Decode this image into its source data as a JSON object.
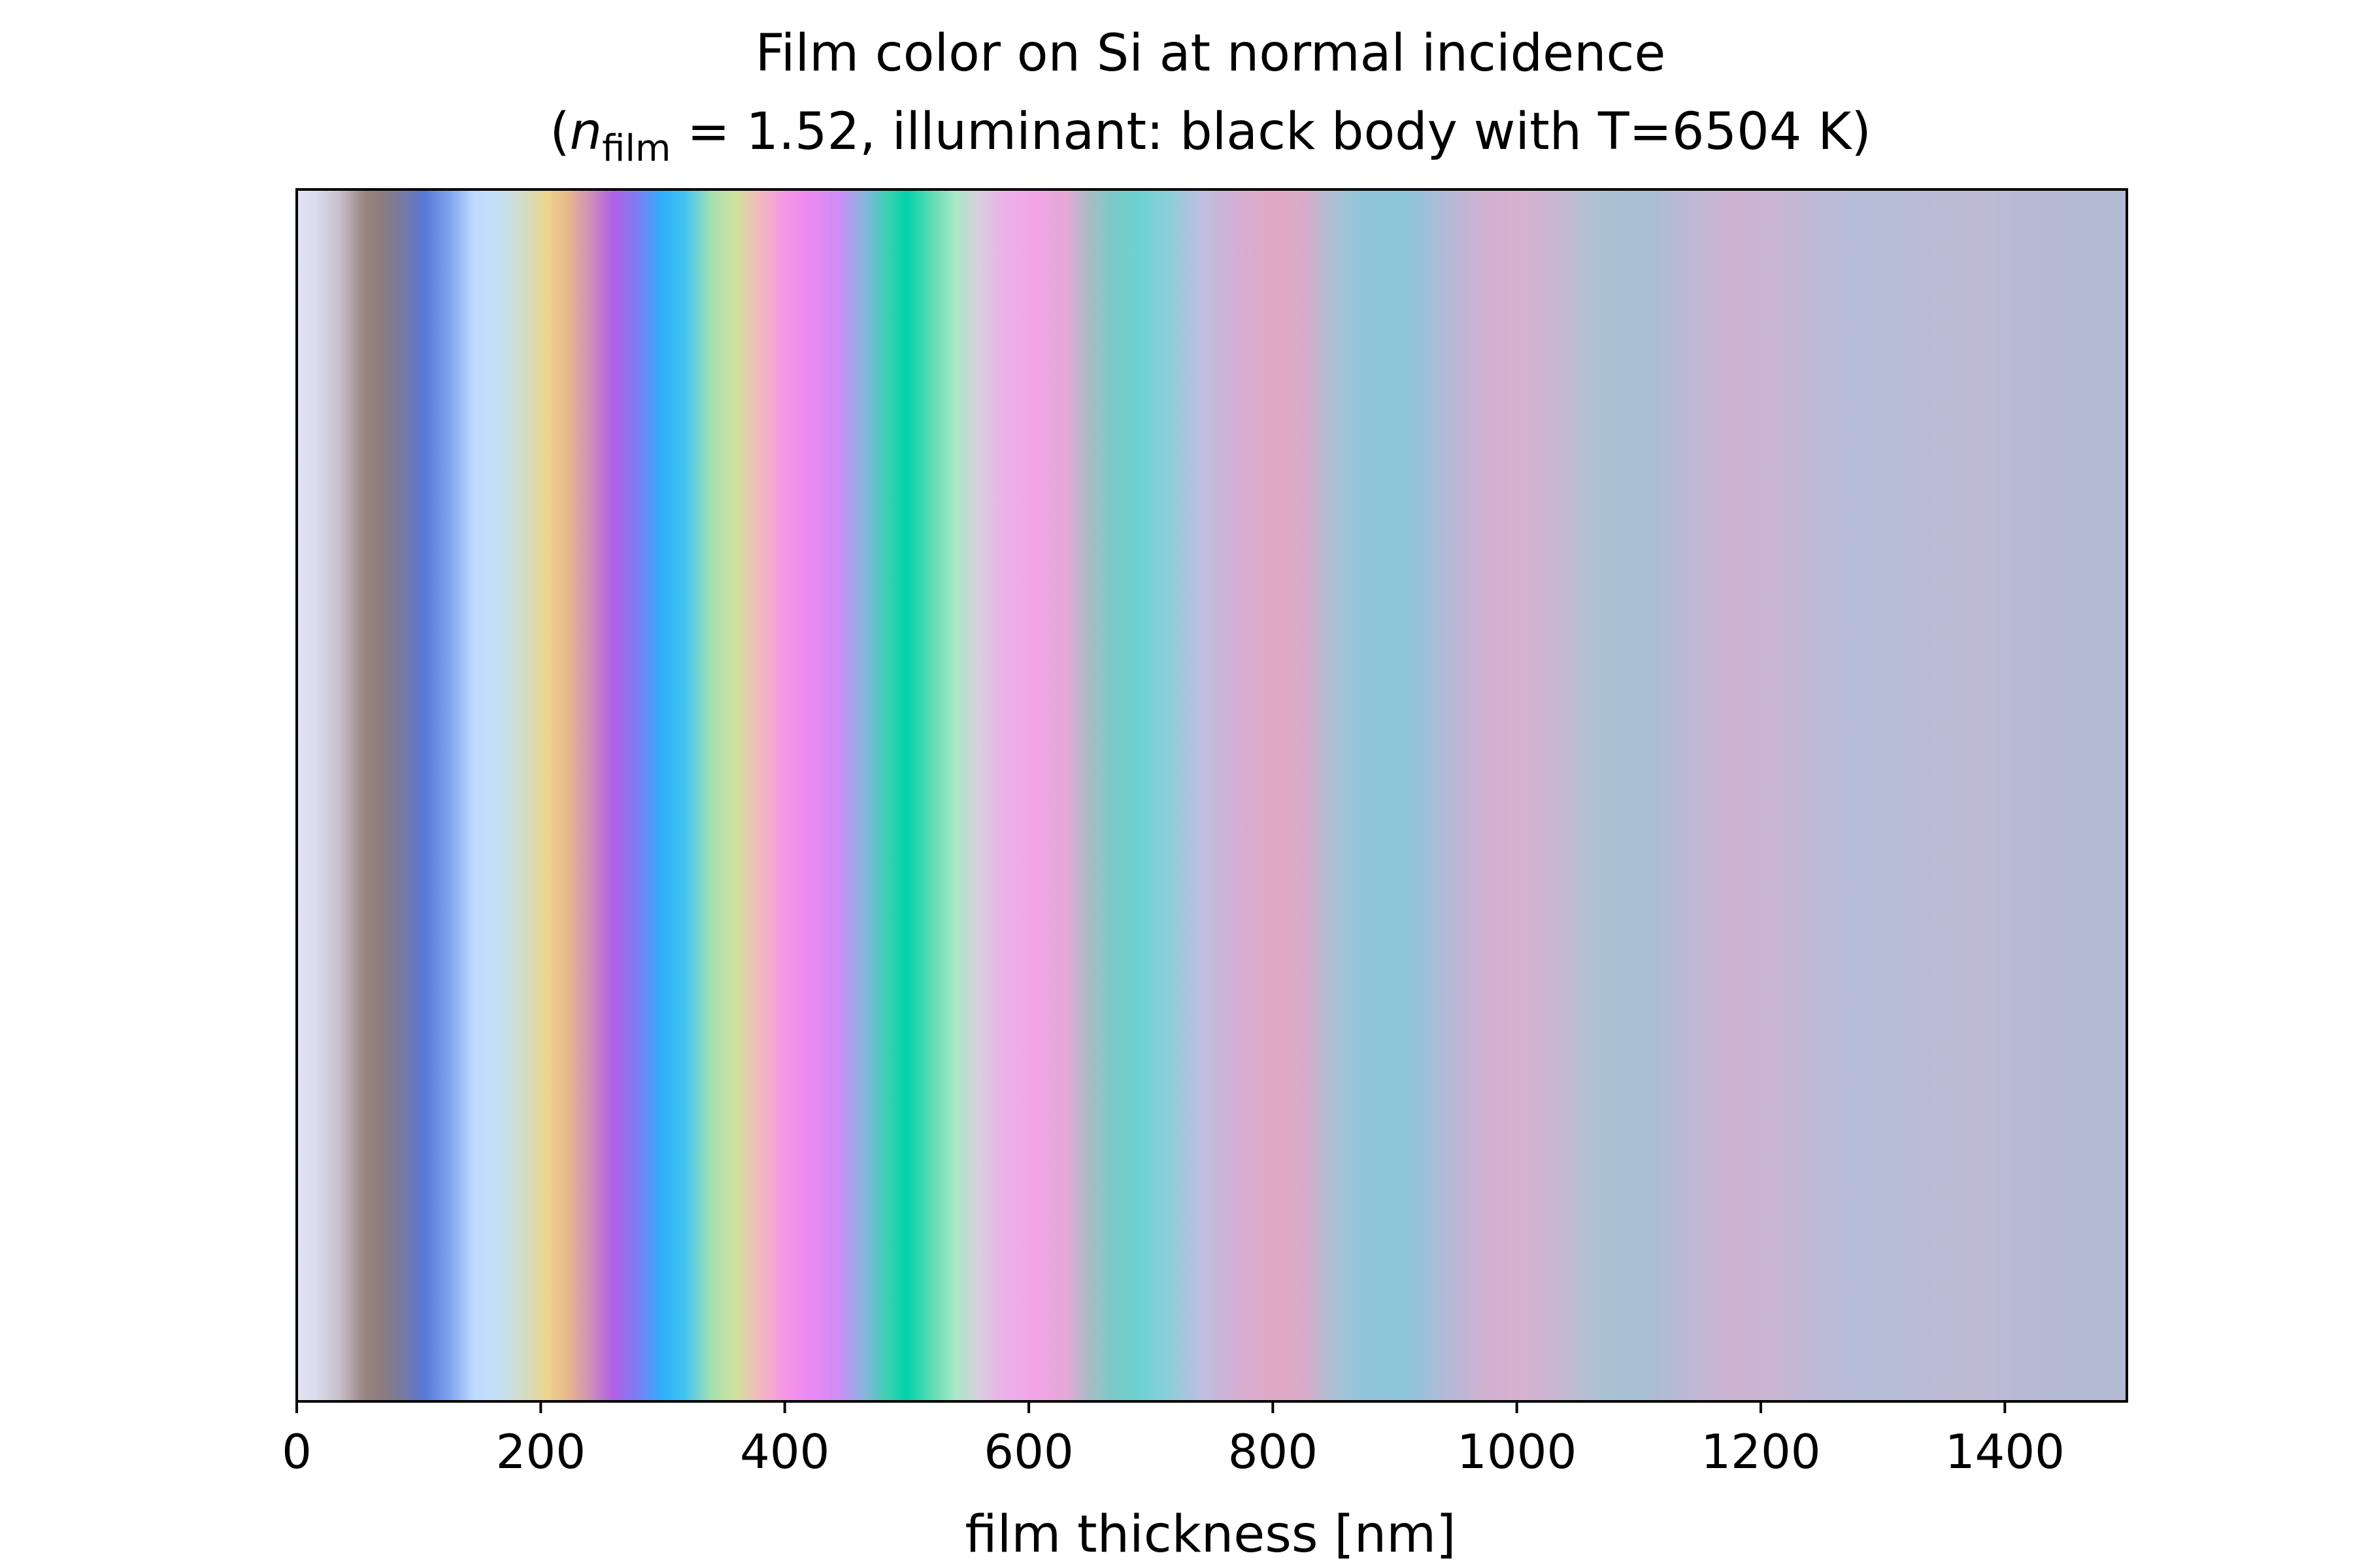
{
  "chart_data": {
    "type": "heatmap",
    "title_line1": "Film color on Si at normal incidence",
    "title_line2": {
      "open": "(",
      "symbol": "n",
      "subscript": "film",
      "rest": " = 1.52, illuminant: black body with T=6504 K)"
    },
    "xlabel": "film thickness [nm]",
    "ylabel": "",
    "xlim": [
      0,
      1500
    ],
    "x_ticks": [
      0,
      200,
      400,
      600,
      800,
      1000,
      1200,
      1400
    ],
    "y_ticks": [],
    "grid": false,
    "color_stops": [
      {
        "x": 0,
        "color": "#e2e2f2"
      },
      {
        "x": 15,
        "color": "#dadcee"
      },
      {
        "x": 35,
        "color": "#c8c0cc"
      },
      {
        "x": 55,
        "color": "#9a8682"
      },
      {
        "x": 70,
        "color": "#8c7c7e"
      },
      {
        "x": 85,
        "color": "#7a7aa0"
      },
      {
        "x": 105,
        "color": "#5878d8"
      },
      {
        "x": 125,
        "color": "#7ea2ec"
      },
      {
        "x": 145,
        "color": "#bedaff"
      },
      {
        "x": 165,
        "color": "#c4e0f6"
      },
      {
        "x": 185,
        "color": "#d2dcc8"
      },
      {
        "x": 205,
        "color": "#ecd48c"
      },
      {
        "x": 222,
        "color": "#e8b88c"
      },
      {
        "x": 240,
        "color": "#d090b8"
      },
      {
        "x": 260,
        "color": "#b060e8"
      },
      {
        "x": 280,
        "color": "#7880f4"
      },
      {
        "x": 300,
        "color": "#2cb0fc"
      },
      {
        "x": 318,
        "color": "#42c4f0"
      },
      {
        "x": 340,
        "color": "#a4e0b0"
      },
      {
        "x": 360,
        "color": "#d2e29c"
      },
      {
        "x": 380,
        "color": "#f4b8c0"
      },
      {
        "x": 400,
        "color": "#f496e6"
      },
      {
        "x": 420,
        "color": "#ec88f2"
      },
      {
        "x": 445,
        "color": "#cc8ef6"
      },
      {
        "x": 465,
        "color": "#88b4de"
      },
      {
        "x": 485,
        "color": "#38d2b0"
      },
      {
        "x": 500,
        "color": "#00d2ac"
      },
      {
        "x": 520,
        "color": "#5edcb4"
      },
      {
        "x": 540,
        "color": "#aae8c8"
      },
      {
        "x": 560,
        "color": "#dacde0"
      },
      {
        "x": 580,
        "color": "#ecb0e8"
      },
      {
        "x": 605,
        "color": "#f2a4e6"
      },
      {
        "x": 630,
        "color": "#e6a8d8"
      },
      {
        "x": 650,
        "color": "#a6bcc4"
      },
      {
        "x": 668,
        "color": "#7ccac8"
      },
      {
        "x": 690,
        "color": "#6cd2d2"
      },
      {
        "x": 715,
        "color": "#8ccfd8"
      },
      {
        "x": 740,
        "color": "#bcc0e0"
      },
      {
        "x": 770,
        "color": "#d6aed4"
      },
      {
        "x": 800,
        "color": "#e0a8c4"
      },
      {
        "x": 825,
        "color": "#d8aac8"
      },
      {
        "x": 850,
        "color": "#aac0d4"
      },
      {
        "x": 875,
        "color": "#90c6da"
      },
      {
        "x": 910,
        "color": "#8ec6dc"
      },
      {
        "x": 945,
        "color": "#b6b8d6"
      },
      {
        "x": 975,
        "color": "#d2b0d0"
      },
      {
        "x": 1005,
        "color": "#d8b2d0"
      },
      {
        "x": 1040,
        "color": "#c4bad4"
      },
      {
        "x": 1070,
        "color": "#a8c2d2"
      },
      {
        "x": 1105,
        "color": "#a8bed2"
      },
      {
        "x": 1140,
        "color": "#bcb8d4"
      },
      {
        "x": 1175,
        "color": "#ccb2d2"
      },
      {
        "x": 1215,
        "color": "#c8b6d4"
      },
      {
        "x": 1260,
        "color": "#b8bad6"
      },
      {
        "x": 1300,
        "color": "#b4bcd6"
      },
      {
        "x": 1345,
        "color": "#bcbad4"
      },
      {
        "x": 1380,
        "color": "#bebad4"
      },
      {
        "x": 1430,
        "color": "#b4bad4"
      },
      {
        "x": 1500,
        "color": "#b2bad4"
      }
    ]
  }
}
